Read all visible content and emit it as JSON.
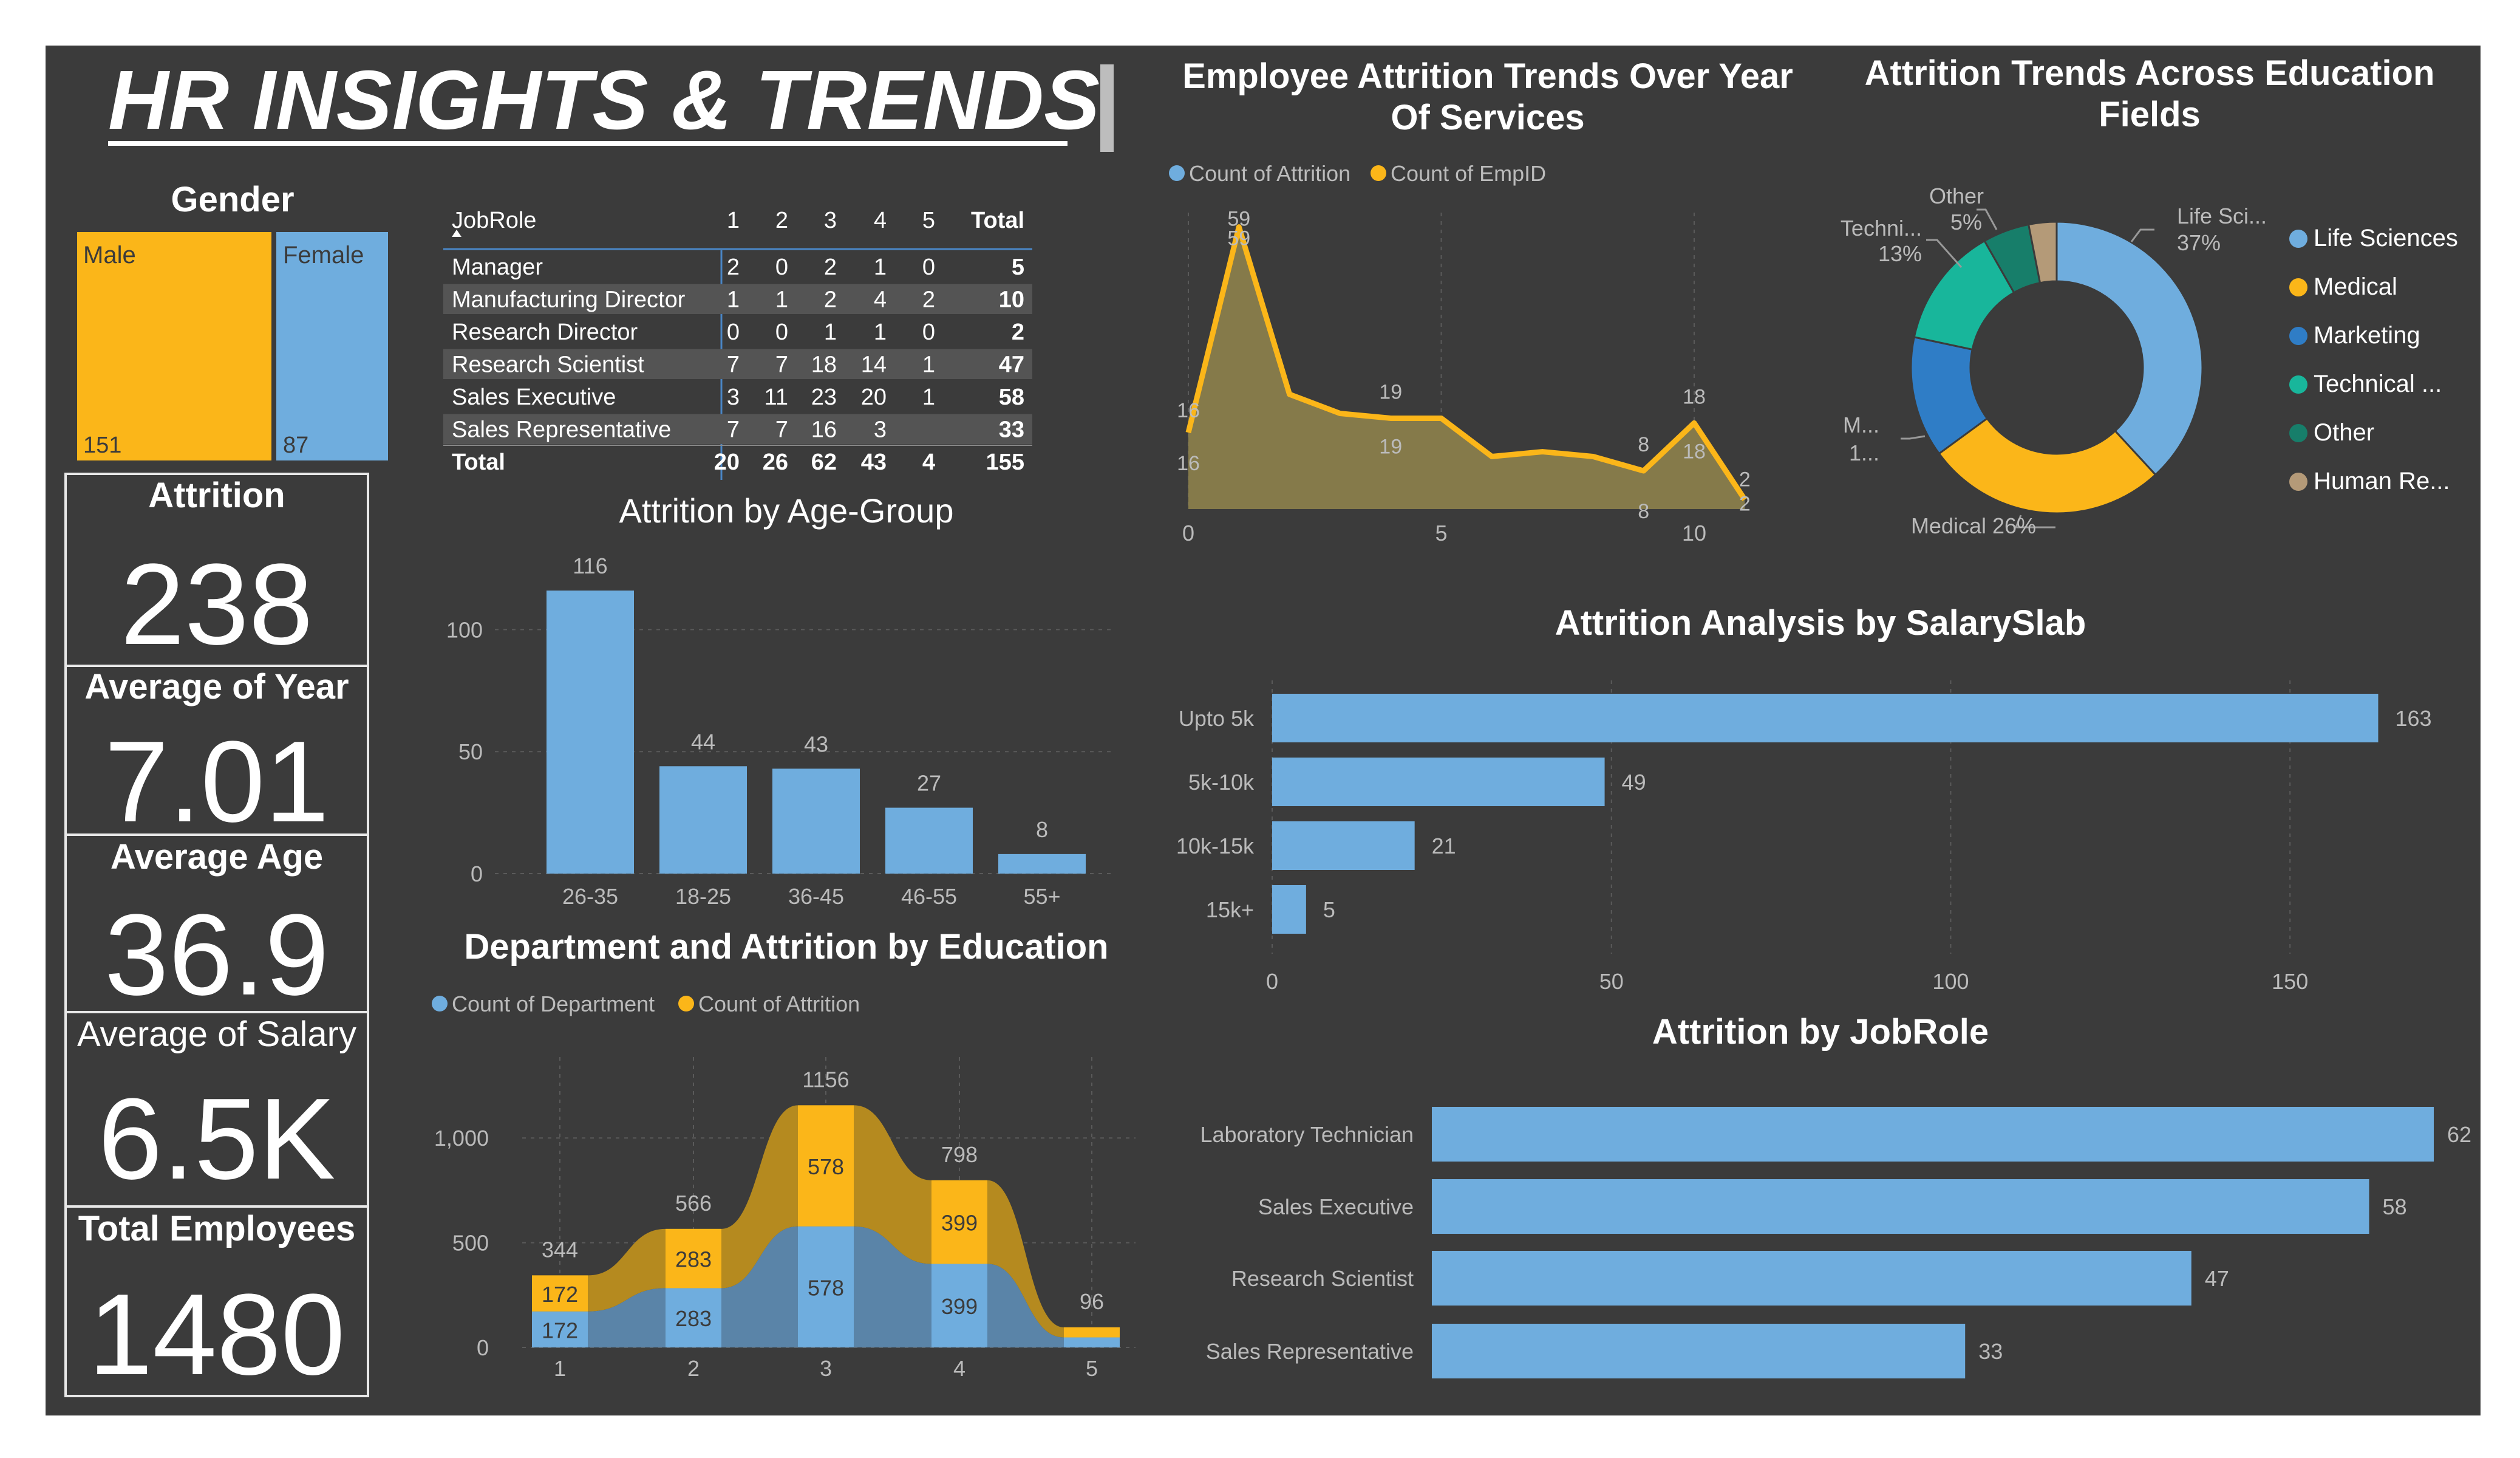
{
  "dashboard": {
    "title": "HR INSIGHTS & TRENDS",
    "colors": {
      "background": "#3b3b3b",
      "blue": "#6fadde",
      "gold": "#fbb619",
      "border": "#e8e8e8",
      "text": "#ffffff",
      "muted": "#bbbbbb"
    }
  },
  "gender": {
    "title": "Gender",
    "male_label": "Male",
    "male_value": "151",
    "female_label": "Female",
    "female_value": "87",
    "chart_data": {
      "type": "treemap",
      "categories": [
        "Male",
        "Female"
      ],
      "values": [
        151,
        87
      ]
    }
  },
  "kpis": {
    "attrition": {
      "label": "Attrition",
      "value": "238"
    },
    "avg_year": {
      "label": "Average of Year",
      "value": "7.01"
    },
    "avg_age": {
      "label": "Average Age",
      "value": "36.9"
    },
    "avg_salary": {
      "label": "Average of Salary",
      "value": "6.5K"
    },
    "total_employees": {
      "label": "Total Employees",
      "value": "1480"
    }
  },
  "jobrole_table": {
    "header": [
      "JobRole",
      "1",
      "2",
      "3",
      "4",
      "5",
      "Total"
    ],
    "rows": [
      [
        "Manager",
        "2",
        "0",
        "2",
        "1",
        "0",
        "5"
      ],
      [
        "Manufacturing Director",
        "1",
        "1",
        "2",
        "4",
        "2",
        "10"
      ],
      [
        "Research Director",
        "0",
        "0",
        "1",
        "1",
        "0",
        "2"
      ],
      [
        "Research Scientist",
        "7",
        "7",
        "18",
        "14",
        "1",
        "47"
      ],
      [
        "Sales Executive",
        "3",
        "11",
        "23",
        "20",
        "1",
        "58"
      ],
      [
        "Sales Representative",
        "7",
        "7",
        "16",
        "3",
        "",
        "33"
      ]
    ],
    "total_row": [
      "Total",
      "20",
      "26",
      "62",
      "43",
      "4",
      "155"
    ]
  },
  "chart_data": [
    {
      "id": "age_group",
      "type": "bar",
      "title": "Attrition by Age-Group",
      "categories": [
        "26-35",
        "18-25",
        "36-45",
        "46-55",
        "55+"
      ],
      "values": [
        116,
        44,
        43,
        27,
        8
      ],
      "y_ticks": [
        "0",
        "50",
        "100"
      ],
      "ylim": [
        0,
        125
      ]
    },
    {
      "id": "dept_education",
      "type": "area",
      "title": "Department and Attrition by Education",
      "legend": [
        "Count of Department",
        "Count of Attrition"
      ],
      "x": [
        "1",
        "2",
        "3",
        "4",
        "5"
      ],
      "series": [
        {
          "name": "Count of Department",
          "values": [
            172,
            283,
            578,
            399,
            48
          ]
        },
        {
          "name": "Count of Attrition",
          "values": [
            172,
            283,
            578,
            399,
            48
          ]
        }
      ],
      "totals": [
        "344",
        "566",
        "1156",
        "798",
        "96"
      ],
      "y_ticks": [
        "0",
        "500",
        "1,000"
      ],
      "ylim": [
        0,
        1250
      ]
    },
    {
      "id": "years_service",
      "type": "area",
      "title_line1": "Employee Attrition Trends Over Year",
      "title_line2": "Of Services",
      "legend": [
        "Count of Attrition",
        "Count of EmpID"
      ],
      "x": [
        0,
        1,
        2,
        3,
        4,
        5,
        6,
        7,
        8,
        9,
        10,
        11
      ],
      "series": [
        {
          "name": "Count of Attrition",
          "values": [
            16,
            59,
            24,
            20,
            19,
            19,
            11,
            12,
            11,
            8,
            18,
            2
          ]
        },
        {
          "name": "Count of EmpID",
          "values": [
            16,
            59,
            24,
            20,
            19,
            19,
            11,
            12,
            11,
            8,
            18,
            2
          ]
        }
      ],
      "point_labels": [
        "16",
        "59",
        "19",
        "8",
        "18",
        "2"
      ],
      "x_ticks": [
        "0",
        "5",
        "10"
      ],
      "ylim": [
        0,
        62
      ]
    },
    {
      "id": "education_fields",
      "type": "pie",
      "title_line1": "Attrition Trends Across Education",
      "title_line2": "Fields",
      "categories": [
        "Life Sciences",
        "Medical",
        "Marketing",
        "Technical ...",
        "Other",
        "Human Re..."
      ],
      "values": [
        37,
        26,
        13,
        13,
        5,
        3
      ],
      "slice_labels": {
        "life": "Life Sci...",
        "life_pct": "37%",
        "medical": "Medical 26%",
        "marketing": "M...",
        "marketing_pct": "1...",
        "technical": "Techni...",
        "technical_pct": "13%",
        "other": "Other",
        "other_pct": "5%"
      }
    },
    {
      "id": "salary_slab",
      "type": "bar",
      "orientation": "horizontal",
      "title": "Attrition Analysis by SalarySlab",
      "categories": [
        "Upto 5k",
        "5k-10k",
        "10k-15k",
        "15k+"
      ],
      "values": [
        163,
        49,
        21,
        5
      ],
      "x_ticks": [
        "0",
        "50",
        "100",
        "150"
      ],
      "xlim": [
        0,
        166
      ]
    },
    {
      "id": "jobrole",
      "type": "bar",
      "orientation": "horizontal",
      "title": "Attrition by JobRole",
      "categories": [
        "Laboratory Technician",
        "Sales Executive",
        "Research Scientist",
        "Sales Representative"
      ],
      "values": [
        62,
        58,
        47,
        33
      ]
    }
  ]
}
